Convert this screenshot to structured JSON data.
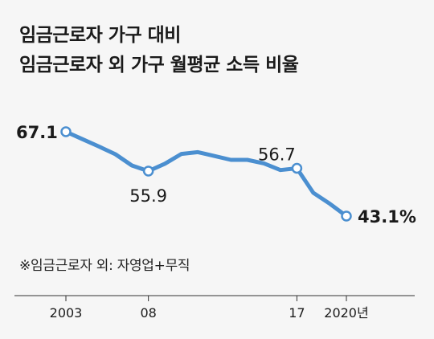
{
  "title_lines": [
    "임금근로자 가구 대비",
    "임금근로자 외 가구 월평균 소득 비율"
  ],
  "note": "※임금근로자 외: 자영업+무직",
  "colors": {
    "line": "#4b8fd0",
    "text": "#1a1a1a",
    "background": "#f6f6f6"
  },
  "chart_data": {
    "type": "line",
    "x": [
      2003,
      2004,
      2005,
      2006,
      2007,
      2008,
      2009,
      2010,
      2011,
      2012,
      2013,
      2014,
      2015,
      2016,
      2017,
      2018,
      2019,
      2020
    ],
    "values": [
      67.1,
      65.0,
      62.9,
      60.7,
      57.5,
      55.9,
      58.0,
      60.8,
      61.3,
      60.2,
      59.1,
      59.1,
      58.1,
      56.2,
      56.7,
      49.7,
      46.6,
      43.1
    ],
    "marked_points": [
      2003,
      2008,
      2017,
      2020
    ],
    "data_labels": [
      {
        "x": 2003,
        "text": "67.1",
        "bold": true
      },
      {
        "x": 2008,
        "text": "55.9",
        "bold": false
      },
      {
        "x": 2017,
        "text": "56.7",
        "bold": false
      },
      {
        "x": 2020,
        "text": "43.1%",
        "bold": true
      }
    ],
    "x_tick_labels": [
      {
        "x": 2003,
        "text": "2003"
      },
      {
        "x": 2008,
        "text": "08"
      },
      {
        "x": 2017,
        "text": "17"
      },
      {
        "x": 2020,
        "text": "2020년"
      }
    ],
    "xlabel": "",
    "ylabel": "",
    "grid": false
  }
}
